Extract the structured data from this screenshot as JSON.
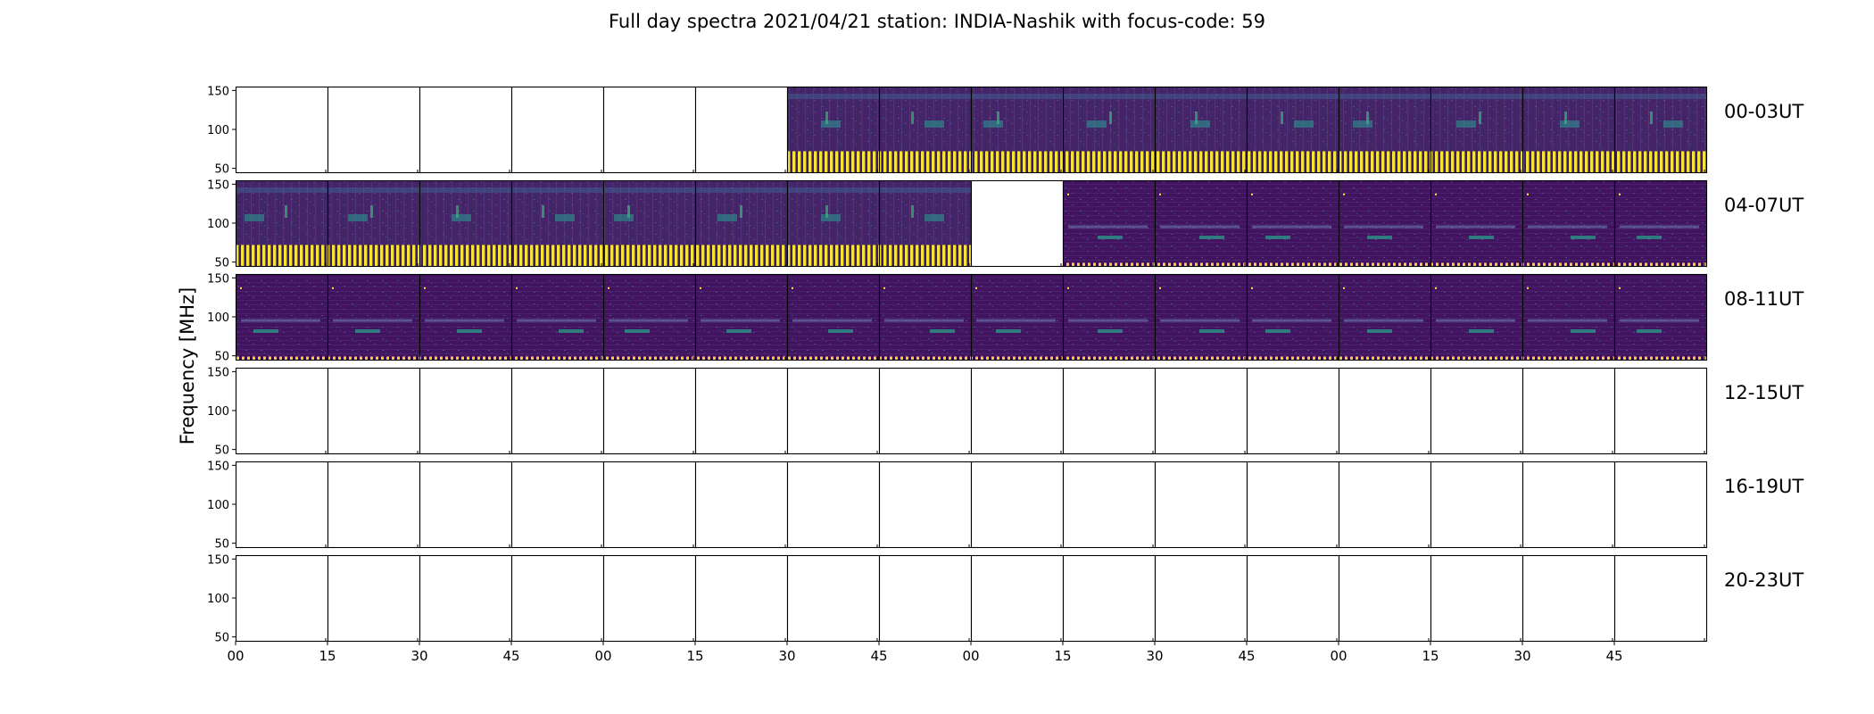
{
  "chart_data": {
    "type": "heatmap",
    "title": "Full day spectra 2021/04/21 station: INDIA-Nashik with focus-code: 59",
    "ylabel": "Frequency [MHz]",
    "xlabel": "",
    "yticks": [
      "150",
      "100",
      "50"
    ],
    "ylim": [
      45,
      155
    ],
    "xticks": [
      "00",
      "15",
      "30",
      "45",
      "00",
      "15",
      "30",
      "45",
      "00",
      "15",
      "30",
      "45",
      "00",
      "15",
      "30",
      "45"
    ],
    "colormap": "viridis",
    "colors": {
      "low": "#440154",
      "mid": "#21918c",
      "high": "#fde725"
    },
    "rows": [
      {
        "label": "00-03UT",
        "panels": [
          "empty",
          "empty",
          "empty",
          "empty",
          "empty",
          "empty",
          "bandA",
          "bandA",
          "bandA",
          "bandA",
          "bandA",
          "bandA",
          "bandA",
          "bandA",
          "bandA",
          "bandA"
        ]
      },
      {
        "label": "04-07UT",
        "panels": [
          "bandA",
          "bandA",
          "bandA",
          "bandA",
          "bandA",
          "bandA",
          "bandA",
          "bandA",
          "empty",
          "bandB",
          "bandB",
          "bandB",
          "bandB",
          "bandB",
          "bandB",
          "bandB"
        ]
      },
      {
        "label": "08-11UT",
        "panels": [
          "bandB",
          "bandB",
          "bandB",
          "bandB",
          "bandB",
          "bandB",
          "bandB",
          "bandB",
          "bandB",
          "bandB",
          "bandB",
          "bandB",
          "bandB",
          "bandB",
          "bandB",
          "bandB"
        ]
      },
      {
        "label": "12-15UT",
        "panels": [
          "empty",
          "empty",
          "empty",
          "empty",
          "empty",
          "empty",
          "empty",
          "empty",
          "empty",
          "empty",
          "empty",
          "empty",
          "empty",
          "empty",
          "empty",
          "empty"
        ]
      },
      {
        "label": "16-19UT",
        "panels": [
          "empty",
          "empty",
          "empty",
          "empty",
          "empty",
          "empty",
          "empty",
          "empty",
          "empty",
          "empty",
          "empty",
          "empty",
          "empty",
          "empty",
          "empty",
          "empty"
        ]
      },
      {
        "label": "20-23UT",
        "panels": [
          "empty",
          "empty",
          "empty",
          "empty",
          "empty",
          "empty",
          "empty",
          "empty",
          "empty",
          "empty",
          "empty",
          "empty",
          "empty",
          "empty",
          "empty",
          "empty"
        ]
      }
    ]
  }
}
